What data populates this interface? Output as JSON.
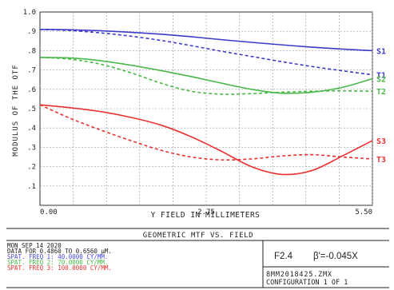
{
  "chart_data": {
    "type": "line",
    "title": "GEOMETRIC MTF VS. FIELD",
    "xlabel": "Y FIELD IN MILLIMETERS",
    "ylabel": "MODULUS OF THE OTF",
    "xlim": [
      0,
      5.5
    ],
    "ylim": [
      0,
      1.0
    ],
    "x_ticks": [
      {
        "value": 0.0,
        "label": "0.00"
      },
      {
        "value": 2.75,
        "label": "2.75"
      },
      {
        "value": 5.5,
        "label": "5.50"
      }
    ],
    "y_ticks": [
      {
        "value": 0.1,
        "label": ".1"
      },
      {
        "value": 0.2,
        "label": ".2"
      },
      {
        "value": 0.3,
        "label": ".3"
      },
      {
        "value": 0.4,
        "label": ".4"
      },
      {
        "value": 0.5,
        "label": ".5"
      },
      {
        "value": 0.6,
        "label": ".6"
      },
      {
        "value": 0.7,
        "label": ".7"
      },
      {
        "value": 0.8,
        "label": ".8"
      },
      {
        "value": 0.9,
        "label": ".9"
      },
      {
        "value": 1.0,
        "label": "1.0"
      }
    ],
    "grid": true,
    "x": [
      0.0,
      0.5,
      1.0,
      1.5,
      2.0,
      2.5,
      3.0,
      3.5,
      4.0,
      4.5,
      5.0,
      5.5
    ],
    "series": [
      {
        "name": "S1",
        "color": "#3c3cc8",
        "dash": false,
        "values": [
          0.91,
          0.908,
          0.903,
          0.895,
          0.885,
          0.872,
          0.857,
          0.843,
          0.83,
          0.818,
          0.808,
          0.8
        ]
      },
      {
        "name": "T1",
        "color": "#3c3cc8",
        "dash": true,
        "values": [
          0.91,
          0.904,
          0.892,
          0.875,
          0.853,
          0.826,
          0.797,
          0.77,
          0.743,
          0.718,
          0.696,
          0.675
        ]
      },
      {
        "name": "S2",
        "color": "#48b848",
        "dash": false,
        "values": [
          0.765,
          0.762,
          0.748,
          0.725,
          0.697,
          0.666,
          0.632,
          0.6,
          0.58,
          0.585,
          0.61,
          0.655
        ]
      },
      {
        "name": "T2",
        "color": "#48b848",
        "dash": true,
        "values": [
          0.765,
          0.756,
          0.73,
          0.686,
          0.632,
          0.59,
          0.575,
          0.578,
          0.585,
          0.59,
          0.592,
          0.59
        ]
      },
      {
        "name": "S3",
        "color": "#e83232",
        "dash": false,
        "values": [
          0.52,
          0.505,
          0.485,
          0.455,
          0.415,
          0.355,
          0.28,
          0.2,
          0.16,
          0.18,
          0.255,
          0.335
        ]
      },
      {
        "name": "T3",
        "color": "#e83232",
        "dash": true,
        "values": [
          0.52,
          0.45,
          0.39,
          0.335,
          0.285,
          0.25,
          0.235,
          0.24,
          0.255,
          0.262,
          0.25,
          0.24
        ]
      }
    ]
  },
  "info": {
    "date": "MON SEP 14 2020",
    "data_line": "DATA FOR 0.4860 TO 0.6560 µM.",
    "freqs": [
      {
        "text": "SPAT. FREQ 1:  40.0000 CY/MM.",
        "color": "#4848e0"
      },
      {
        "text": "SPAT. FREQ 2:  70.0000 CY/MM.",
        "color": "#48b848"
      },
      {
        "text": "SPAT. FREQ 3: 100.0000 CY/MM.",
        "color": "#e83232"
      }
    ],
    "fnum": "F2.4",
    "mag": "β'=-0.045X",
    "file": "8MM2018425.ZMX",
    "config": "CONFIGURATION 1 OF 1"
  }
}
